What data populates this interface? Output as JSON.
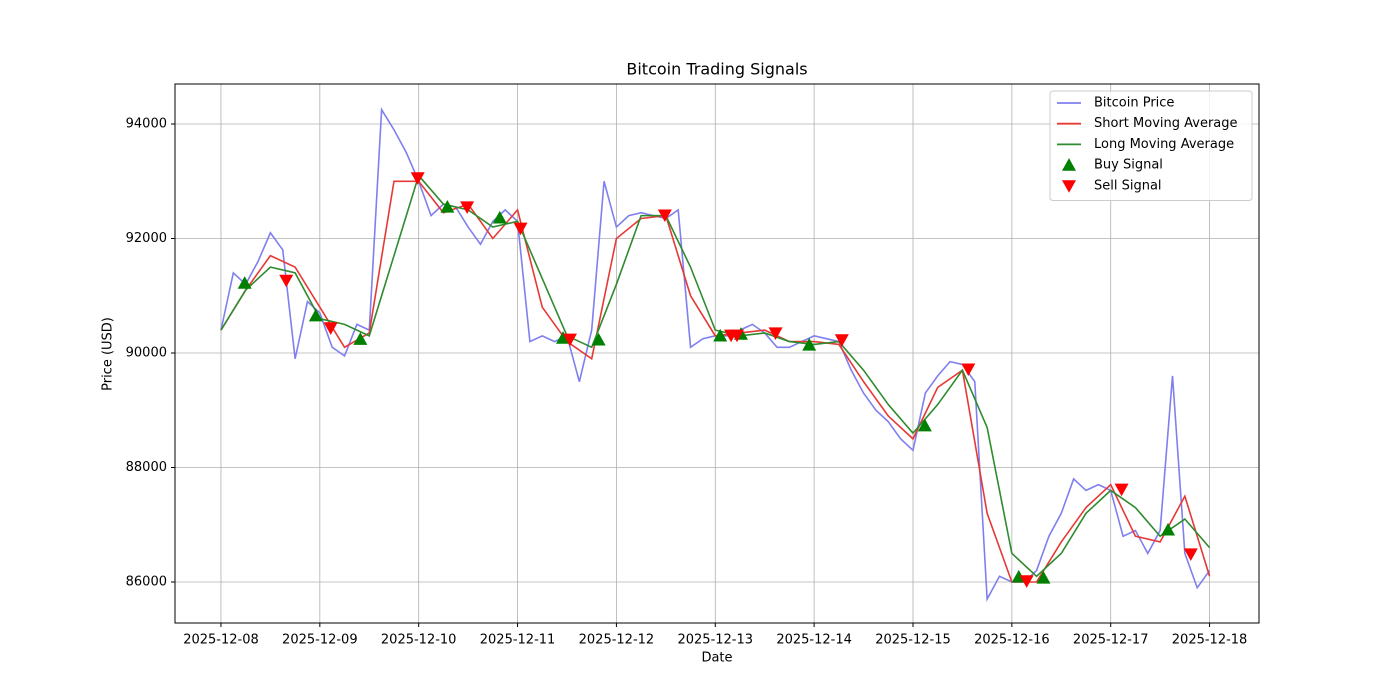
{
  "chart_data": {
    "type": "line",
    "title": "Bitcoin Trading Signals",
    "x_label": "Date",
    "y_label": "Price (USD)",
    "xlim": [
      -0.465,
      10.5
    ],
    "ylim": [
      85284,
      94699
    ],
    "xticks": [
      {
        "value": 0,
        "label": "2025-12-08"
      },
      {
        "value": 1,
        "label": "2025-12-09"
      },
      {
        "value": 2,
        "label": "2025-12-10"
      },
      {
        "value": 3,
        "label": "2025-12-11"
      },
      {
        "value": 4,
        "label": "2025-12-12"
      },
      {
        "value": 5,
        "label": "2025-12-13"
      },
      {
        "value": 6,
        "label": "2025-12-14"
      },
      {
        "value": 7,
        "label": "2025-12-15"
      },
      {
        "value": 8,
        "label": "2025-12-16"
      },
      {
        "value": 9,
        "label": "2025-12-17"
      },
      {
        "value": 10,
        "label": "2025-12-18"
      }
    ],
    "yticks": [
      86000,
      88000,
      90000,
      92000,
      94000
    ],
    "grid": true,
    "legend": "upper right",
    "series": [
      {
        "name": "Bitcoin Price",
        "type": "line",
        "color": "#7f7fef",
        "x": [
          0,
          0.125,
          0.25,
          0.375,
          0.5,
          0.625,
          0.75,
          0.875,
          1,
          1.125,
          1.25,
          1.375,
          1.5,
          1.625,
          1.75,
          1.875,
          2,
          2.125,
          2.25,
          2.375,
          2.5,
          2.625,
          2.75,
          2.875,
          3,
          3.125,
          3.25,
          3.375,
          3.5,
          3.625,
          3.75,
          3.875,
          4,
          4.125,
          4.25,
          4.375,
          4.5,
          4.625,
          4.75,
          4.875,
          5,
          5.125,
          5.25,
          5.375,
          5.5,
          5.625,
          5.75,
          5.875,
          6,
          6.125,
          6.25,
          6.375,
          6.5,
          6.625,
          6.75,
          6.875,
          7,
          7.125,
          7.25,
          7.375,
          7.5,
          7.625,
          7.75,
          7.875,
          8,
          8.125,
          8.25,
          8.375,
          8.5,
          8.625,
          8.75,
          8.875,
          9,
          9.125,
          9.25,
          9.375,
          9.5,
          9.625,
          9.75,
          9.875,
          10
        ],
        "values": [
          90400,
          91400,
          91200,
          91600,
          92100,
          91800,
          89900,
          90900,
          90700,
          90100,
          89950,
          90500,
          90400,
          94250,
          93900,
          93500,
          93000,
          92400,
          92600,
          92550,
          92200,
          91900,
          92300,
          92500,
          92300,
          90200,
          90300,
          90200,
          90300,
          89500,
          90400,
          93000,
          92200,
          92400,
          92450,
          92400,
          92350,
          92500,
          90100,
          90250,
          90300,
          90300,
          90400,
          90500,
          90350,
          90100,
          90100,
          90200,
          90300,
          90250,
          90200,
          89700,
          89300,
          89000,
          88800,
          88500,
          88300,
          89300,
          89600,
          89850,
          89800,
          89500,
          85700,
          86100,
          86000,
          86000,
          86200,
          86800,
          87200,
          87800,
          87600,
          87700,
          87600,
          86800,
          86900,
          86500,
          86900,
          89600,
          86500,
          85900,
          86200
        ]
      },
      {
        "name": "Short Moving Average",
        "type": "line",
        "color": "#e53935",
        "x": [
          0,
          0.25,
          0.5,
          0.75,
          1,
          1.25,
          1.5,
          1.75,
          2,
          2.25,
          2.5,
          2.75,
          3,
          3.25,
          3.5,
          3.75,
          4,
          4.25,
          4.5,
          4.75,
          5,
          5.25,
          5.5,
          5.75,
          6,
          6.25,
          6.5,
          6.75,
          7,
          7.25,
          7.5,
          7.75,
          8,
          8.25,
          8.5,
          8.75,
          9,
          9.25,
          9.5,
          9.75,
          10
        ],
        "values": [
          90400,
          91100,
          91700,
          91500,
          90800,
          90100,
          90350,
          93000,
          93000,
          92450,
          92600,
          92000,
          92500,
          90800,
          90200,
          89900,
          92000,
          92350,
          92400,
          91000,
          90300,
          90350,
          90400,
          90200,
          90200,
          90150,
          89500,
          88900,
          88500,
          89400,
          89700,
          87200,
          86000,
          86000,
          86700,
          87300,
          87700,
          86800,
          86700,
          87500,
          86100
        ]
      },
      {
        "name": "Long Moving Average",
        "type": "line",
        "color": "#2e8b2e",
        "x": [
          0,
          0.25,
          0.5,
          0.75,
          1,
          1.25,
          1.5,
          1.75,
          2,
          2.25,
          2.5,
          2.75,
          3,
          3.25,
          3.5,
          3.75,
          4,
          4.25,
          4.5,
          4.75,
          5,
          5.25,
          5.5,
          5.75,
          6,
          6.25,
          6.5,
          6.75,
          7,
          7.25,
          7.5,
          7.75,
          8,
          8.25,
          8.5,
          8.75,
          9,
          9.25,
          9.5,
          9.75,
          10
        ],
        "values": [
          90400,
          91100,
          91500,
          91400,
          90600,
          90500,
          90300,
          91700,
          93100,
          92600,
          92500,
          92200,
          92300,
          91300,
          90300,
          90100,
          91200,
          92400,
          92400,
          91500,
          90400,
          90300,
          90350,
          90200,
          90150,
          90200,
          89700,
          89100,
          88600,
          89100,
          89700,
          88700,
          86500,
          86100,
          86500,
          87200,
          87600,
          87300,
          86800,
          87100,
          86600
        ]
      },
      {
        "name": "Buy Signal",
        "type": "scatter",
        "marker": "up",
        "color": "#008000",
        "x": [
          0.24,
          0.96,
          1.41,
          2.29,
          2.82,
          3.46,
          3.82,
          5.05,
          5.26,
          5.95,
          7.12,
          8.07,
          8.32,
          9.58
        ],
        "values": [
          91220,
          90650,
          90240,
          92550,
          92360,
          90260,
          90230,
          90300,
          90330,
          90140,
          88730,
          86090,
          86070,
          86910
        ]
      },
      {
        "name": "Sell Signal",
        "type": "scatter",
        "marker": "down",
        "color": "#ff0000",
        "x": [
          0.66,
          1.11,
          1.99,
          2.49,
          3.03,
          3.53,
          4.49,
          5.16,
          5.22,
          5.61,
          6.28,
          7.56,
          8.15,
          9.11,
          9.81
        ],
        "values": [
          91270,
          90440,
          93060,
          92550,
          92180,
          90240,
          92410,
          90310,
          90310,
          90350,
          90230,
          89720,
          86020,
          87620,
          86490
        ]
      }
    ]
  }
}
